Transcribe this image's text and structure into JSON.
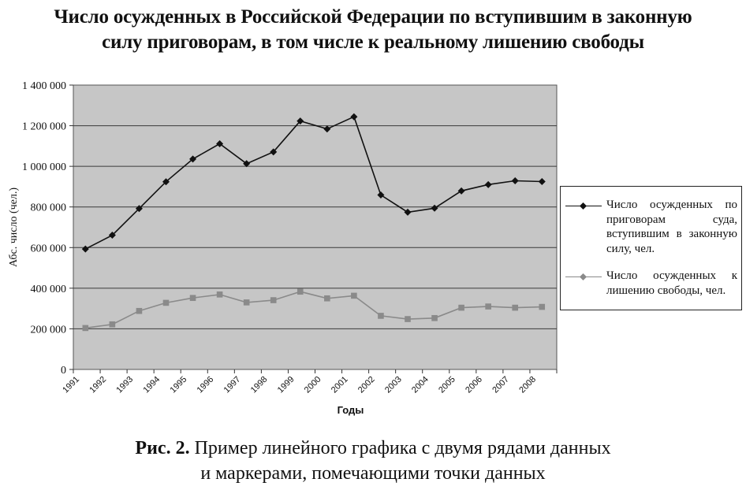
{
  "title": {
    "line1": "Число осужденных в Российской Федерации по вступившим в законную",
    "line2": "силу приговорам, в том числе к реальному лишению свободы"
  },
  "caption": {
    "label": "Рис. 2.",
    "line1": "Пример линейного графика с двумя рядами данных",
    "line2": "и маркерами, помечающими точки данных"
  },
  "legend": {
    "item1": "Число осужденных по приговорам суда, вступившим в закон­ную силу, чел.",
    "item2": "Число осужденных к лишению свободы, чел."
  },
  "chart_data": {
    "type": "line",
    "title": "Число осужденных в Российской Федерации по вступившим в законную силу приговорам, в том числе к реальному лишению свободы",
    "xlabel": "Годы",
    "ylabel": "Абс. число (чел.)",
    "ylim": [
      0,
      1400000
    ],
    "yticks": [
      0,
      200000,
      400000,
      600000,
      800000,
      1000000,
      1200000,
      1400000
    ],
    "ytick_labels": [
      "0",
      "200 000",
      "400 000",
      "600 000",
      "800 000",
      "1 000 000",
      "1 200 000",
      "1 400 000"
    ],
    "grid": true,
    "legend_position": "right",
    "categories": [
      "1991",
      "1992",
      "1993",
      "1994",
      "1995",
      "1996",
      "1997",
      "1998",
      "1999",
      "2000",
      "2001",
      "2002",
      "2003",
      "2004",
      "2005",
      "2006",
      "2007",
      "2008"
    ],
    "series": [
      {
        "name": "Число осужденных по приговорам суда, вступившим в законную силу, чел.",
        "color": "#111111",
        "marker": "diamond",
        "values": [
          593000,
          661000,
          792000,
          924000,
          1036000,
          1111000,
          1013000,
          1071000,
          1223000,
          1184000,
          1244000,
          859000,
          774000,
          794000,
          879000,
          910000,
          929000,
          925000
        ]
      },
      {
        "name": "Число осужденных к лишению свободы, чел.",
        "color": "#8a8a8a",
        "marker": "square",
        "values": [
          204000,
          222000,
          288000,
          328000,
          352000,
          369000,
          330000,
          341000,
          383000,
          350000,
          363000,
          264000,
          248000,
          253000,
          304000,
          310000,
          304000,
          308000
        ]
      }
    ]
  }
}
